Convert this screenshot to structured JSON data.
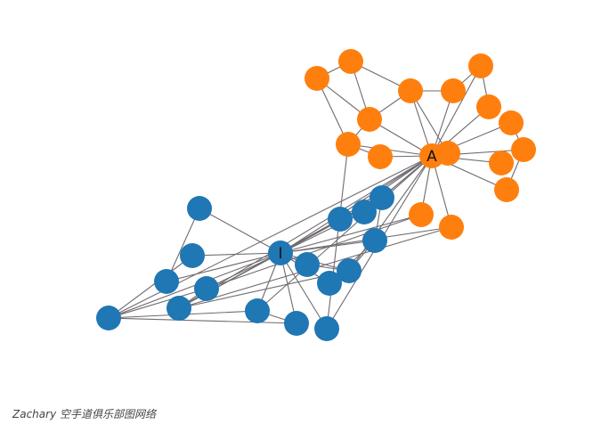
{
  "caption": "Zachary 空手道俱乐部图网络",
  "colors": {
    "group_A": "#ff7f0e",
    "group_I": "#1f77b4",
    "edge": "#6f6a6f"
  },
  "graph": {
    "nodes": [
      {
        "id": "I",
        "label": "I",
        "group": "I"
      },
      {
        "id": "A",
        "label": "A",
        "group": "A"
      },
      {
        "id": "o1",
        "label": "",
        "group": "A"
      },
      {
        "id": "o2",
        "label": "",
        "group": "A"
      },
      {
        "id": "o3",
        "label": "",
        "group": "A"
      },
      {
        "id": "o4",
        "label": "",
        "group": "A"
      },
      {
        "id": "o5",
        "label": "",
        "group": "A"
      },
      {
        "id": "o6",
        "label": "",
        "group": "A"
      },
      {
        "id": "o7",
        "label": "",
        "group": "A"
      },
      {
        "id": "o8",
        "label": "",
        "group": "A"
      },
      {
        "id": "o9",
        "label": "",
        "group": "A"
      },
      {
        "id": "o10",
        "label": "",
        "group": "A"
      },
      {
        "id": "o11",
        "label": "",
        "group": "A"
      },
      {
        "id": "o12",
        "label": "",
        "group": "A"
      },
      {
        "id": "o13",
        "label": "",
        "group": "A"
      },
      {
        "id": "o14",
        "label": "",
        "group": "A"
      },
      {
        "id": "o15",
        "label": "",
        "group": "A"
      },
      {
        "id": "o16",
        "label": "",
        "group": "A"
      },
      {
        "id": "b1",
        "label": "",
        "group": "I"
      },
      {
        "id": "b2",
        "label": "",
        "group": "I"
      },
      {
        "id": "b3",
        "label": "",
        "group": "I"
      },
      {
        "id": "b4",
        "label": "",
        "group": "I"
      },
      {
        "id": "b5",
        "label": "",
        "group": "I"
      },
      {
        "id": "b6",
        "label": "",
        "group": "I"
      },
      {
        "id": "b7",
        "label": "",
        "group": "I"
      },
      {
        "id": "b8",
        "label": "",
        "group": "I"
      },
      {
        "id": "b9",
        "label": "",
        "group": "I"
      },
      {
        "id": "b10",
        "label": "",
        "group": "I"
      },
      {
        "id": "b11",
        "label": "",
        "group": "I"
      },
      {
        "id": "b12",
        "label": "",
        "group": "I"
      },
      {
        "id": "b13",
        "label": "",
        "group": "I"
      },
      {
        "id": "b14",
        "label": "",
        "group": "I"
      },
      {
        "id": "b15",
        "label": "",
        "group": "I"
      },
      {
        "id": "b16",
        "label": "",
        "group": "I"
      }
    ],
    "edges": [
      [
        "o1",
        "o2"
      ],
      [
        "o1",
        "o5"
      ],
      [
        "o2",
        "o3"
      ],
      [
        "o2",
        "o5"
      ],
      [
        "o3",
        "o4"
      ],
      [
        "o3",
        "o10"
      ],
      [
        "o3",
        "A"
      ],
      [
        "o4",
        "o7"
      ],
      [
        "o4",
        "A"
      ],
      [
        "o5",
        "o3"
      ],
      [
        "o5",
        "o6"
      ],
      [
        "o5",
        "A"
      ],
      [
        "o6",
        "A"
      ],
      [
        "o6",
        "o9"
      ],
      [
        "o6",
        "b16"
      ],
      [
        "o1",
        "o6"
      ],
      [
        "o7",
        "o8"
      ],
      [
        "o7",
        "A"
      ],
      [
        "o8",
        "A"
      ],
      [
        "o9",
        "A"
      ],
      [
        "o10",
        "A"
      ],
      [
        "o11",
        "A"
      ],
      [
        "o12",
        "A"
      ],
      [
        "o13",
        "A"
      ],
      [
        "o14",
        "A"
      ],
      [
        "o15",
        "A"
      ],
      [
        "o16",
        "A"
      ],
      [
        "o16",
        "I"
      ],
      [
        "o15",
        "I"
      ],
      [
        "o15",
        "b11"
      ],
      [
        "o16",
        "b12"
      ],
      [
        "o11",
        "o12"
      ],
      [
        "o14",
        "o12"
      ],
      [
        "A",
        "b1"
      ],
      [
        "A",
        "b3"
      ],
      [
        "A",
        "b4"
      ],
      [
        "A",
        "b6"
      ],
      [
        "A",
        "b12"
      ],
      [
        "A",
        "b16"
      ],
      [
        "A",
        "b13"
      ],
      [
        "A",
        "b14"
      ],
      [
        "A",
        "I"
      ],
      [
        "I",
        "b1"
      ],
      [
        "I",
        "b2"
      ],
      [
        "I",
        "b3"
      ],
      [
        "I",
        "b4"
      ],
      [
        "I",
        "b5"
      ],
      [
        "I",
        "b6"
      ],
      [
        "I",
        "b7"
      ],
      [
        "I",
        "b8"
      ],
      [
        "I",
        "b9"
      ],
      [
        "I",
        "b10"
      ],
      [
        "I",
        "b11"
      ],
      [
        "I",
        "b12"
      ],
      [
        "I",
        "b13"
      ],
      [
        "I",
        "b14"
      ],
      [
        "I",
        "b15"
      ],
      [
        "I",
        "b16"
      ],
      [
        "b1",
        "b4"
      ],
      [
        "b1",
        "b12"
      ],
      [
        "b3",
        "b4"
      ],
      [
        "b5",
        "b4"
      ],
      [
        "b5",
        "b6"
      ],
      [
        "b6",
        "b12"
      ],
      [
        "b7",
        "b5"
      ],
      [
        "b8",
        "b6"
      ],
      [
        "b9",
        "b13"
      ],
      [
        "b13",
        "b15"
      ],
      [
        "b13",
        "b14"
      ],
      [
        "b14",
        "b15"
      ],
      [
        "b11",
        "b13"
      ],
      [
        "b10",
        "b2"
      ],
      [
        "b11",
        "b12"
      ]
    ]
  }
}
